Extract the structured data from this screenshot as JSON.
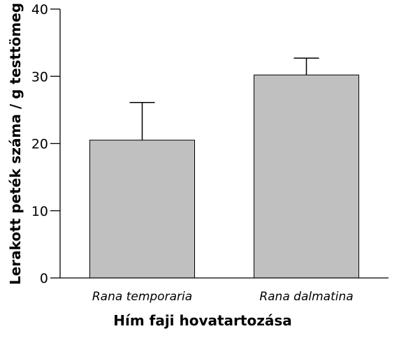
{
  "chart_data": {
    "type": "bar",
    "categories": [
      "Rana temporaria",
      "Rana dalmatina"
    ],
    "series": [
      {
        "values": [
          20.5,
          30.2
        ],
        "error_upper": [
          5.6,
          2.5
        ]
      }
    ],
    "xlabel": "Hím faji hovatartozása",
    "ylabel": "Lerakott peték száma / g testtömeg",
    "ylim": [
      0,
      40
    ],
    "yticks": [
      0,
      10,
      20,
      30,
      40
    ],
    "grid": false,
    "bar_color": "#c0c0c0"
  }
}
